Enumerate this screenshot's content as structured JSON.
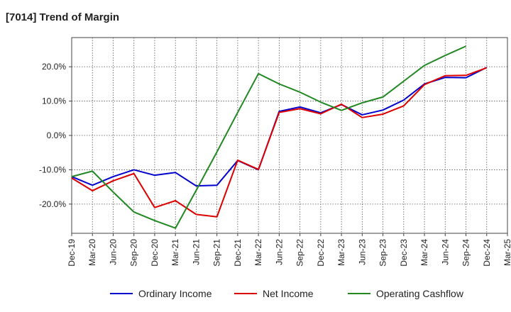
{
  "chart_data": {
    "type": "line",
    "title": "[7014]  Trend of Margin",
    "xlabel": "",
    "ylabel": "",
    "categories": [
      "Dec-19",
      "Mar-20",
      "Jun-20",
      "Sep-20",
      "Dec-20",
      "Mar-21",
      "Jun-21",
      "Sep-21",
      "Dec-21",
      "Mar-22",
      "Jun-22",
      "Sep-22",
      "Dec-22",
      "Mar-23",
      "Jun-23",
      "Sep-23",
      "Dec-23",
      "Mar-24",
      "Jun-24",
      "Sep-24",
      "Dec-24",
      "Mar-25"
    ],
    "y_ticks": [
      -20,
      -10,
      0,
      10,
      20
    ],
    "y_tick_labels": [
      "-20.0%",
      "-10.0%",
      "0.0%",
      "10.0%",
      "20.0%"
    ],
    "ylim": [
      -28.5,
      28.5
    ],
    "grid": true,
    "legend_position": "bottom",
    "series": [
      {
        "name": "Ordinary Income",
        "color": "#0000cc",
        "values": [
          -12.0,
          -14.5,
          -12.0,
          -10.0,
          -11.6,
          -10.8,
          -14.7,
          -14.5,
          -7.3,
          -10.0,
          7.0,
          8.3,
          6.6,
          9.0,
          6.0,
          7.4,
          10.3,
          15.0,
          16.9,
          16.8,
          19.8,
          null
        ]
      },
      {
        "name": "Net Income",
        "color": "#dd0000",
        "values": [
          -12.4,
          -16.1,
          -13.2,
          -11.1,
          -21.0,
          -19.0,
          -23.0,
          -23.7,
          -7.2,
          -9.9,
          6.7,
          7.8,
          6.3,
          9.1,
          5.2,
          6.2,
          8.6,
          14.8,
          17.4,
          17.5,
          19.7,
          null
        ]
      },
      {
        "name": "Operating Cashflow",
        "color": "#228822",
        "values": [
          -12.0,
          -10.4,
          -16.5,
          -22.3,
          -24.8,
          -27.0,
          -16.0,
          -4.8,
          6.7,
          18.0,
          15.0,
          12.6,
          9.7,
          7.3,
          9.5,
          11.2,
          15.8,
          20.4,
          23.3,
          26.0,
          null,
          null
        ]
      }
    ]
  }
}
